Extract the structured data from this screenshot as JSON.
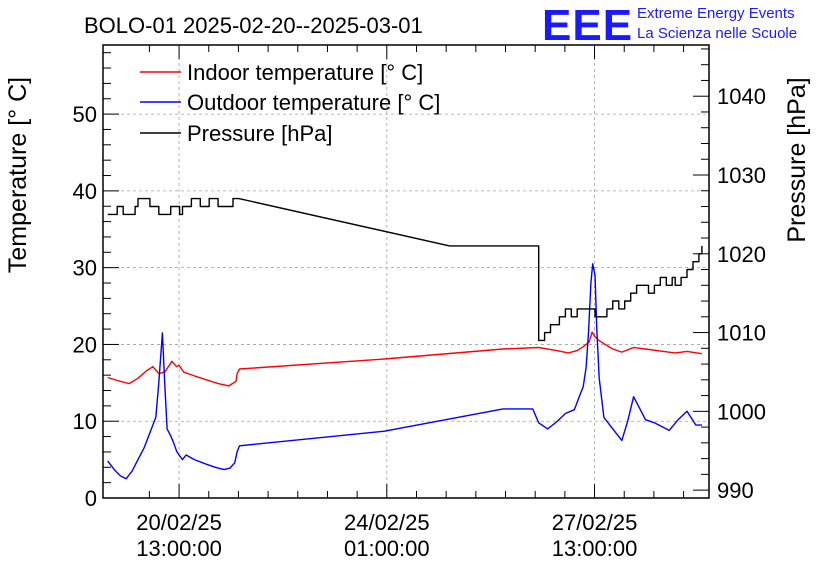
{
  "header": {
    "title": "BOLO-01 2025-02-20--2025-03-01",
    "logo_text": "EEE",
    "org_line1": "Extreme Energy Events",
    "org_line2": "La Scienza nelle Scuole"
  },
  "chart_data": {
    "type": "line",
    "title": "BOLO-01 2025-02-20--2025-03-01",
    "x_unit": "days since 2025-02-20 00:00",
    "xlim": [
      -0.74,
      9.47
    ],
    "x_ticks": [
      {
        "x": 0.5417,
        "date": "20/02/25",
        "time": "13:00:00"
      },
      {
        "x": 4.0417,
        "date": "24/02/25",
        "time": "01:00:00"
      },
      {
        "x": 7.5417,
        "date": "27/02/25",
        "time": "13:00:00"
      }
    ],
    "x_minor_ticks": [
      0.0417,
      1.0417,
      1.5417,
      2.0417,
      2.5417,
      3.0417,
      3.5417,
      4.5417,
      5.0417,
      5.5417,
      6.0417,
      6.5417,
      7.0417,
      8.0417,
      8.5417,
      9.0417
    ],
    "y_left": {
      "label": "Temperature [° C]",
      "lim": [
        0,
        59
      ],
      "ticks": [
        0,
        10,
        20,
        30,
        40,
        50
      ]
    },
    "y_right": {
      "label": "Pressure [hPa]",
      "lim": [
        989,
        1046.5
      ],
      "ticks": [
        990,
        1000,
        1010,
        1020,
        1030,
        1040
      ]
    },
    "grid": true,
    "legend": {
      "placement": "top-left"
    },
    "series": [
      {
        "name": "Indoor temperature [° C]",
        "axis": "left",
        "color": "#ff0000",
        "x": [
          -0.66,
          -0.5,
          -0.3,
          -0.15,
          0.0,
          0.1,
          0.2,
          0.3,
          0.42,
          0.5,
          0.54,
          0.62,
          0.8,
          1.0,
          1.2,
          1.38,
          1.5,
          1.52,
          1.56,
          4.0,
          6.0,
          6.6,
          6.9,
          7.1,
          7.25,
          7.35,
          7.45,
          7.5,
          7.55,
          7.6,
          7.7,
          7.85,
          8.0,
          8.2,
          8.4,
          8.7,
          8.9,
          9.1,
          9.35
        ],
        "y": [
          15.7,
          15.3,
          14.9,
          15.6,
          16.6,
          17.1,
          16.2,
          16.4,
          17.8,
          17.1,
          17.3,
          16.4,
          15.9,
          15.4,
          14.9,
          14.6,
          15.2,
          16.2,
          16.8,
          18.1,
          19.4,
          19.6,
          19.2,
          18.9,
          19.2,
          19.7,
          20.3,
          21.6,
          21.0,
          20.6,
          20.1,
          19.4,
          19.0,
          19.6,
          19.4,
          19.1,
          18.9,
          19.1,
          18.8
        ]
      },
      {
        "name": "Outdoor temperature [° C]",
        "axis": "left",
        "color": "#0000ff",
        "x": [
          -0.66,
          -0.55,
          -0.45,
          -0.35,
          -0.25,
          -0.15,
          -0.05,
          0.05,
          0.15,
          0.2,
          0.26,
          0.3,
          0.34,
          0.4,
          0.45,
          0.5,
          0.55,
          0.6,
          0.66,
          0.8,
          1.0,
          1.15,
          1.3,
          1.4,
          1.48,
          1.52,
          1.56,
          4.0,
          6.0,
          6.5,
          6.6,
          6.75,
          6.9,
          7.05,
          7.2,
          7.3,
          7.35,
          7.4,
          7.44,
          7.48,
          7.51,
          7.55,
          7.58,
          7.62,
          7.7,
          7.85,
          8.0,
          8.1,
          8.2,
          8.4,
          8.55,
          8.8,
          8.95,
          9.1,
          9.25,
          9.35
        ],
        "y": [
          4.8,
          3.7,
          2.9,
          2.5,
          3.5,
          5.0,
          6.5,
          8.5,
          10.5,
          15.0,
          21.5,
          15.0,
          9.0,
          8.1,
          7.2,
          6.1,
          5.5,
          5.0,
          5.6,
          5.0,
          4.4,
          4.0,
          3.7,
          3.9,
          4.6,
          6.0,
          6.8,
          8.7,
          11.6,
          11.6,
          9.8,
          9.0,
          9.9,
          11.0,
          11.5,
          13.5,
          14.5,
          17.0,
          21.5,
          28.0,
          30.5,
          29.0,
          22.0,
          15.6,
          10.5,
          9.0,
          7.5,
          10.0,
          13.2,
          10.2,
          9.8,
          8.8,
          10.2,
          11.3,
          9.5,
          9.5
        ]
      },
      {
        "name": "Pressure [hPa]",
        "axis": "right",
        "color": "#000000",
        "x": [
          -0.66,
          -0.6,
          -0.5,
          -0.4,
          -0.3,
          -0.2,
          -0.15,
          -0.05,
          0.05,
          0.2,
          0.3,
          0.4,
          0.5,
          0.55,
          0.6,
          0.75,
          0.9,
          1.05,
          1.2,
          1.3,
          1.45,
          1.55,
          5.1,
          6.6,
          6.7,
          6.8,
          6.85,
          6.95,
          7.05,
          7.15,
          7.25,
          7.35,
          7.45,
          7.55,
          7.65,
          7.75,
          7.85,
          7.95,
          8.05,
          8.15,
          8.25,
          8.35,
          8.45,
          8.55,
          8.65,
          8.75,
          8.85,
          8.9,
          9.0,
          9.1,
          9.2,
          9.3,
          9.35
        ],
        "y": [
          1025.0,
          1025.0,
          1026.0,
          1025.0,
          1025.0,
          1026.0,
          1027.0,
          1027.0,
          1026.0,
          1025.0,
          1025.0,
          1026.0,
          1026.0,
          1025.0,
          1026.0,
          1027.0,
          1026.0,
          1027.0,
          1026.0,
          1026.0,
          1027.0,
          1027.0,
          1021.0,
          1009.0,
          1010.0,
          1011.0,
          1011.0,
          1012.0,
          1013.0,
          1012.0,
          1013.0,
          1013.0,
          1013.0,
          1012.0,
          1012.0,
          1013.0,
          1014.0,
          1013.0,
          1014.0,
          1015.0,
          1016.0,
          1016.0,
          1015.0,
          1016.0,
          1017.0,
          1016.0,
          1017.0,
          1016.0,
          1017.0,
          1018.0,
          1019.0,
          1020.0,
          1021.0
        ]
      }
    ]
  }
}
